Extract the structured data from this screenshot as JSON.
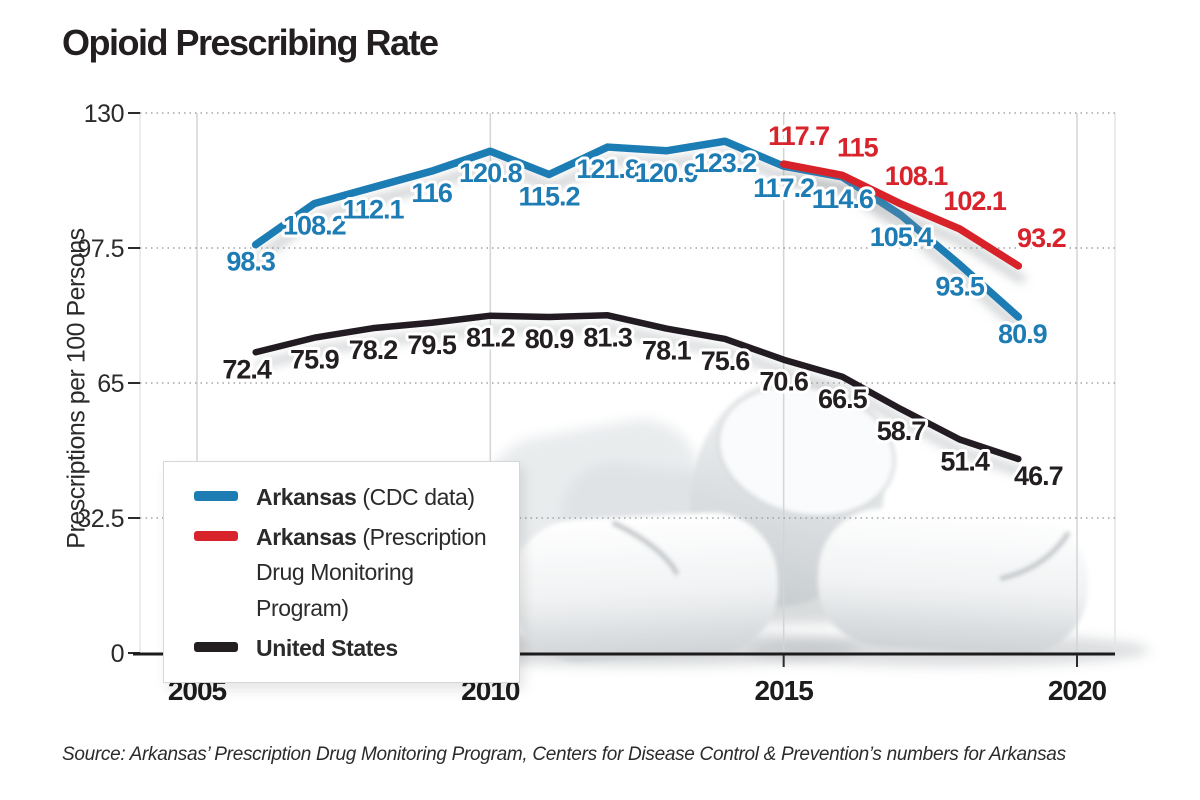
{
  "title": "Opioid Prescribing Rate",
  "source": "Source: Arkansas’ Prescription Drug Monitoring Program, Centers for Disease Control & Prevention’s numbers for Arkansas",
  "colors": {
    "arkansas_cdc": "#1e7cb4",
    "arkansas_pdmp": "#d8232c",
    "united_states": "#231f20",
    "axis": "#1c1c1c",
    "grid_vertical": "#d2d5d7",
    "grid_dotted": "#8f9294"
  },
  "legend": {
    "items": [
      {
        "name": "Arkansas",
        "detail": " (CDC data)",
        "color": "#1e7cb4"
      },
      {
        "name": "Arkansas",
        "detail": " (Prescription Drug Monitoring Program)",
        "color": "#d8232c"
      },
      {
        "name": "United States",
        "detail": "",
        "color": "#231f20"
      }
    ]
  },
  "chart_data": {
    "type": "line",
    "title": "Opioid Prescribing Rate",
    "xlabel": "",
    "ylabel": "Prescriptions per 100 Persons",
    "xlim": [
      2005,
      2020
    ],
    "ylim": [
      0,
      130
    ],
    "xticks": [
      2005,
      2010,
      2015,
      2020
    ],
    "xtick_labels": [
      "2005",
      "2010",
      "2015",
      "2020"
    ],
    "yticks": [
      0,
      32.5,
      65,
      97.5,
      130
    ],
    "ytick_labels": [
      "0",
      "32.5",
      "65",
      "97.5",
      "130"
    ],
    "grid": {
      "vertical": "solid-light",
      "horizontal": "dotted"
    },
    "legend_position": "lower-left",
    "series": [
      {
        "name": "Arkansas (CDC data)",
        "color": "#1e7cb4",
        "label_position": "below",
        "x": [
          2006,
          2007,
          2008,
          2009,
          2010,
          2011,
          2012,
          2013,
          2014,
          2015,
          2016,
          2017,
          2018,
          2019
        ],
        "values": [
          98.3,
          108.2,
          112.1,
          116,
          120.8,
          115.2,
          121.8,
          120.9,
          123.2,
          117.2,
          114.6,
          105.4,
          93.5,
          80.9
        ]
      },
      {
        "name": "Arkansas (Prescription Drug Monitoring Program)",
        "color": "#d8232c",
        "label_position": "above",
        "x": [
          2015,
          2016,
          2017,
          2018,
          2019
        ],
        "values": [
          117.7,
          115,
          108.1,
          102.1,
          93.2
        ]
      },
      {
        "name": "United States",
        "color": "#231f20",
        "label_position": "below",
        "x": [
          2006,
          2007,
          2008,
          2009,
          2010,
          2011,
          2012,
          2013,
          2014,
          2015,
          2016,
          2017,
          2018,
          2019
        ],
        "values": [
          72.4,
          75.9,
          78.2,
          79.5,
          81.2,
          80.9,
          81.3,
          78.1,
          75.6,
          70.6,
          66.5,
          58.7,
          51.4,
          46.7
        ]
      }
    ]
  }
}
